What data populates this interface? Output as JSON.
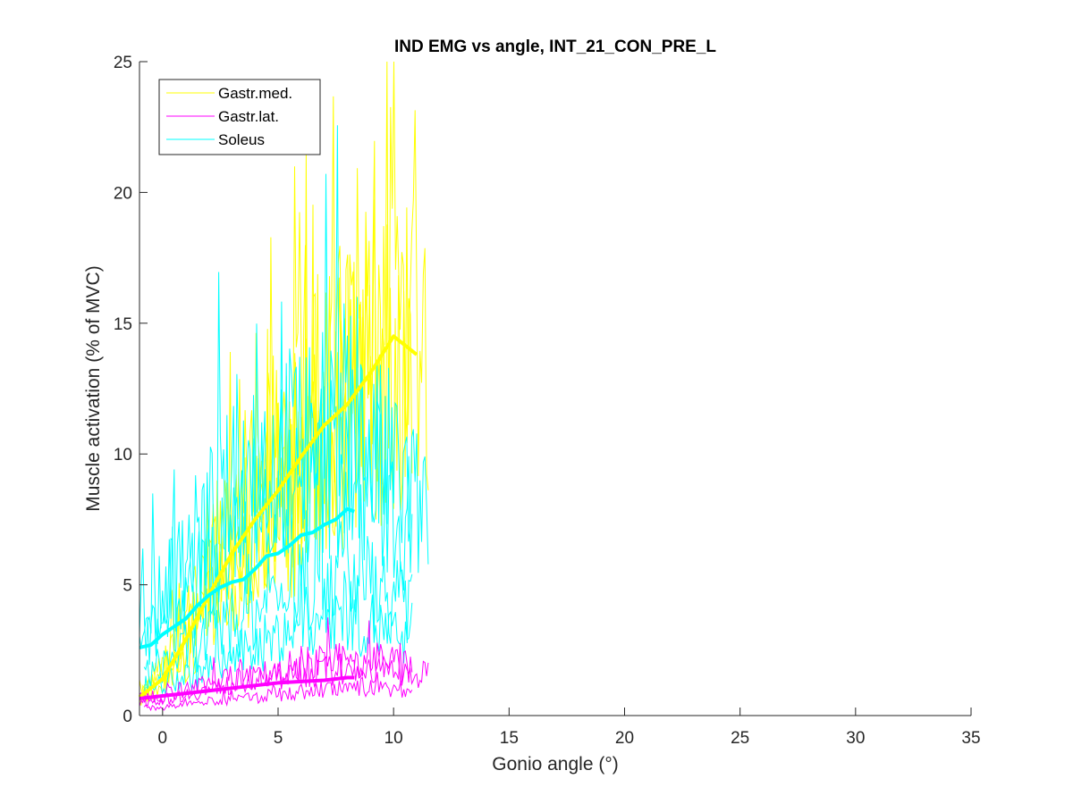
{
  "chart_data": {
    "type": "line",
    "title": "IND EMG vs angle, INT_21_CON_PRE_L",
    "xlabel": "Gonio angle (°)",
    "ylabel": "Muscle activation (% of MVC)",
    "xlim": [
      -1,
      35
    ],
    "ylim": [
      0,
      25
    ],
    "xticks": [
      0,
      5,
      10,
      15,
      20,
      25,
      30,
      35
    ],
    "yticks": [
      0,
      5,
      10,
      15,
      20,
      25
    ],
    "xtick_labels": [
      "0",
      "5",
      "10",
      "15",
      "20",
      "25",
      "30",
      "35"
    ],
    "ytick_labels": [
      "0",
      "5",
      "10",
      "15",
      "20",
      "25"
    ],
    "grid": false,
    "legend_position": "top-left",
    "series": [
      {
        "name": "Gastr.med.",
        "color": "#FFFF00",
        "trials_note_free": true,
        "trials": [
          {
            "x": [
              -1.0,
              0.0,
              1.0,
              2.0,
              3.0,
              4.0,
              5.0,
              6.0,
              7.0,
              8.0,
              9.0,
              10.0,
              11.0,
              11.5
            ],
            "y": [
              0.8,
              1.5,
              3.5,
              5.0,
              7.0,
              8.5,
              9.5,
              10.5,
              11.5,
              12.0,
              13.0,
              14.0,
              14.5,
              12.5
            ]
          },
          {
            "x": [
              -1.0,
              0.0,
              1.0,
              2.0,
              3.0,
              4.0,
              5.0,
              6.0,
              7.0,
              8.0,
              9.0,
              10.0,
              10.8
            ],
            "y": [
              0.6,
              1.2,
              2.8,
              4.2,
              6.0,
              7.5,
              8.8,
              10.0,
              11.5,
              12.5,
              13.5,
              15.0,
              13.0
            ]
          },
          {
            "x": [
              -0.8,
              0.0,
              1.0,
              2.0,
              3.0,
              4.0,
              5.0,
              6.0,
              7.0,
              8.0,
              9.0,
              9.6
            ],
            "y": [
              0.9,
              1.8,
              3.0,
              5.5,
              7.0,
              8.0,
              9.0,
              10.5,
              12.0,
              12.5,
              14.0,
              12.0
            ]
          },
          {
            "x": [
              -0.8,
              0.0,
              1.0,
              2.0,
              3.0,
              4.0,
              5.0,
              6.0,
              7.0,
              7.8
            ],
            "y": [
              0.7,
              1.0,
              2.2,
              3.5,
              4.8,
              6.0,
              7.2,
              8.5,
              9.5,
              8.5
            ]
          }
        ],
        "mean": {
          "x": [
            -1.0,
            0.0,
            1.0,
            2.0,
            3.0,
            4.0,
            5.0,
            6.0,
            7.0,
            8.0,
            9.0,
            10.0,
            11.0
          ],
          "y": [
            0.7,
            1.4,
            2.9,
            4.6,
            6.2,
            7.5,
            8.6,
            9.9,
            11.1,
            11.9,
            13.1,
            14.5,
            13.8
          ]
        }
      },
      {
        "name": "Gastr.lat.",
        "color": "#FF00FF",
        "trials": [
          {
            "x": [
              -1.0,
              0.0,
              1.0,
              2.0,
              3.0,
              4.0,
              5.0,
              6.0,
              7.0,
              8.0,
              9.0,
              10.0,
              11.0,
              11.5
            ],
            "y": [
              0.5,
              0.6,
              0.8,
              1.0,
              1.2,
              1.4,
              1.5,
              1.6,
              1.7,
              1.8,
              1.8,
              1.7,
              1.5,
              1.6
            ]
          },
          {
            "x": [
              -1.0,
              0.0,
              1.0,
              2.0,
              3.0,
              4.0,
              5.0,
              6.0,
              7.0,
              8.0,
              9.0,
              10.0,
              10.8
            ],
            "y": [
              0.7,
              0.8,
              1.0,
              1.2,
              1.4,
              1.5,
              1.7,
              1.9,
              2.0,
              2.1,
              2.2,
              2.0,
              1.8
            ]
          },
          {
            "x": [
              -0.8,
              0.0,
              1.0,
              2.0,
              3.0,
              4.0,
              5.0,
              6.0,
              7.0,
              8.0,
              9.0,
              10.0,
              10.8
            ],
            "y": [
              0.3,
              0.3,
              0.4,
              0.5,
              0.6,
              0.7,
              0.8,
              0.9,
              1.0,
              1.0,
              1.1,
              1.0,
              0.9
            ]
          }
        ],
        "mean": {
          "x": [
            -1.0,
            0.0,
            1.0,
            2.0,
            3.0,
            4.0,
            5.0,
            6.0,
            7.0,
            8.0,
            8.3
          ],
          "y": [
            0.65,
            0.75,
            0.85,
            0.95,
            1.05,
            1.15,
            1.25,
            1.3,
            1.35,
            1.45,
            1.45
          ]
        }
      },
      {
        "name": "Soleus",
        "color": "#00FFFF",
        "trials": [
          {
            "x": [
              -1.0,
              0.0,
              1.0,
              2.0,
              3.0,
              4.0,
              5.0,
              6.0,
              7.0,
              8.0,
              9.0,
              10.0,
              11.0,
              11.5
            ],
            "y": [
              3.5,
              4.5,
              6.0,
              7.5,
              8.5,
              9.5,
              10.0,
              10.5,
              11.0,
              11.5,
              10.0,
              9.5,
              8.0,
              7.5
            ]
          },
          {
            "x": [
              -1.0,
              0.0,
              1.0,
              2.0,
              3.0,
              4.0,
              5.0,
              6.0,
              7.0,
              8.0,
              9.0,
              10.0,
              10.8
            ],
            "y": [
              2.5,
              3.5,
              4.5,
              5.5,
              6.5,
              7.5,
              8.0,
              8.5,
              9.5,
              10.0,
              9.0,
              8.0,
              7.0
            ]
          },
          {
            "x": [
              -0.8,
              0.0,
              1.0,
              2.0,
              3.0,
              4.0,
              5.0,
              6.0,
              7.0,
              8.0,
              9.0,
              10.0,
              10.8
            ],
            "y": [
              1.0,
              1.2,
              1.5,
              1.8,
              2.2,
              2.6,
              3.0,
              3.5,
              3.8,
              4.0,
              3.5,
              3.0,
              2.5
            ]
          },
          {
            "x": [
              -0.8,
              0.0,
              1.0,
              2.0,
              3.0,
              4.0,
              5.0,
              6.0,
              7.0,
              8.0,
              9.0,
              10.0,
              10.8
            ],
            "y": [
              1.5,
              2.0,
              2.5,
              3.0,
              3.5,
              4.0,
              4.5,
              5.0,
              5.5,
              5.5,
              5.0,
              4.5,
              4.0
            ]
          }
        ],
        "mean": {
          "x": [
            -1.0,
            -0.5,
            0.0,
            0.5,
            1.0,
            1.5,
            2.0,
            2.5,
            3.0,
            3.5,
            4.0,
            4.5,
            5.0,
            5.5,
            6.0,
            6.5,
            7.0,
            7.5,
            8.0,
            8.3
          ],
          "y": [
            2.6,
            2.7,
            3.1,
            3.4,
            3.7,
            4.2,
            4.6,
            4.9,
            5.1,
            5.2,
            5.6,
            6.1,
            6.2,
            6.5,
            6.9,
            7.0,
            7.3,
            7.5,
            7.9,
            7.8
          ]
        }
      }
    ]
  }
}
